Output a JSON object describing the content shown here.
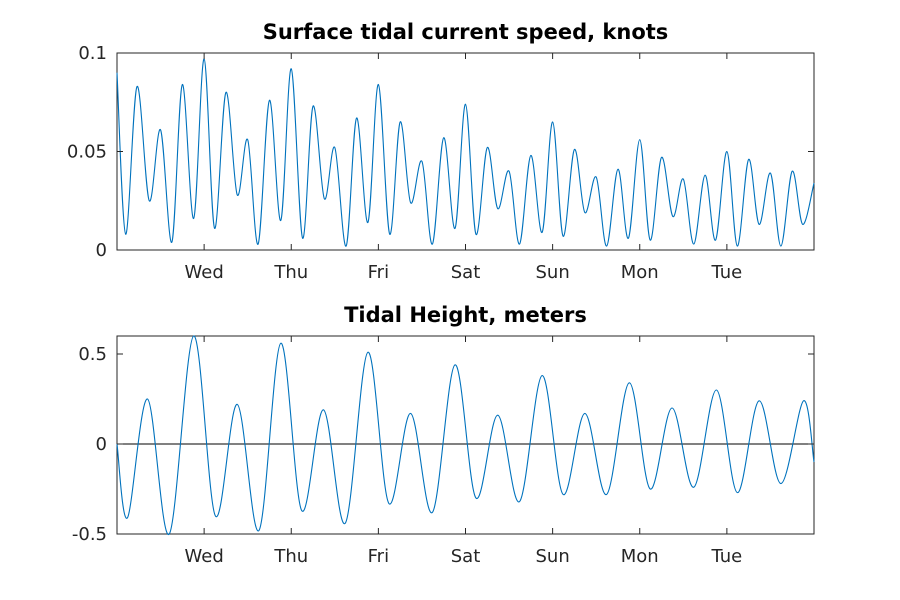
{
  "chart_data": [
    {
      "type": "line",
      "title": "Surface tidal current speed, knots",
      "xlabel": "",
      "ylabel": "",
      "ylim": [
        0,
        0.1
      ],
      "yticks": [
        0,
        0.05,
        0.1
      ],
      "ytick_labels": [
        "0",
        "0.05",
        "0.1"
      ],
      "xlim": [
        0,
        8
      ],
      "xticks": [
        1,
        2,
        3,
        4,
        5,
        6,
        7
      ],
      "xtick_labels": [
        "Wed",
        "Thu",
        "Fri",
        "Sat",
        "Sun",
        "Mon",
        "Tue"
      ],
      "grid": false,
      "color": "#0072BD",
      "series": [
        {
          "x": [
            0,
            0.1,
            0.23,
            0.37,
            0.5,
            0.63,
            0.75,
            0.88,
            1.0,
            1.12,
            1.25,
            1.38,
            1.5,
            1.62,
            1.75,
            1.88,
            2.0,
            2.13,
            2.25,
            2.38,
            2.5,
            2.63,
            2.75,
            2.88,
            3.0,
            3.13,
            3.25,
            3.37,
            3.5,
            3.62,
            3.75,
            3.88,
            4.0,
            4.12,
            4.25,
            4.37,
            4.5,
            4.62,
            4.75,
            4.88,
            5.0,
            5.12,
            5.25,
            5.37,
            5.5,
            5.62,
            5.75,
            5.87,
            6.0,
            6.12,
            6.25,
            6.38,
            6.5,
            6.62,
            6.75,
            6.87,
            7.0,
            7.12,
            7.25,
            7.37,
            7.5,
            7.62,
            7.75,
            7.87,
            8.0
          ],
          "y": [
            0.09,
            0.008,
            0.083,
            0.025,
            0.061,
            0.004,
            0.084,
            0.016,
            0.097,
            0.011,
            0.08,
            0.028,
            0.056,
            0.003,
            0.076,
            0.015,
            0.092,
            0.006,
            0.073,
            0.026,
            0.052,
            0.002,
            0.067,
            0.014,
            0.084,
            0.008,
            0.065,
            0.024,
            0.045,
            0.003,
            0.057,
            0.011,
            0.074,
            0.008,
            0.052,
            0.021,
            0.04,
            0.003,
            0.048,
            0.009,
            0.065,
            0.007,
            0.051,
            0.019,
            0.037,
            0.002,
            0.041,
            0.006,
            0.056,
            0.005,
            0.047,
            0.017,
            0.036,
            0.003,
            0.038,
            0.005,
            0.05,
            0.002,
            0.046,
            0.013,
            0.039,
            0.002,
            0.04,
            0.013,
            0.034
          ]
        }
      ]
    },
    {
      "type": "line",
      "title": "Tidal Height, meters",
      "xlabel": "",
      "ylabel": "",
      "ylim": [
        -0.5,
        0.6
      ],
      "yticks": [
        -0.5,
        0,
        0.5
      ],
      "ytick_labels": [
        "-0.5",
        "0",
        "0.5"
      ],
      "xlim": [
        0,
        8
      ],
      "xticks": [
        1,
        2,
        3,
        4,
        5,
        6,
        7
      ],
      "xtick_labels": [
        "Wed",
        "Thu",
        "Fri",
        "Sat",
        "Sun",
        "Mon",
        "Tue"
      ],
      "grid": false,
      "zero_line": true,
      "color": "#0072BD",
      "series": [
        {
          "x": [
            0,
            0.12,
            0.35,
            0.6,
            0.88,
            1.13,
            1.38,
            1.63,
            1.88,
            2.12,
            2.37,
            2.62,
            2.88,
            3.12,
            3.37,
            3.62,
            3.88,
            4.12,
            4.37,
            4.62,
            4.88,
            5.12,
            5.37,
            5.62,
            5.88,
            6.12,
            6.37,
            6.62,
            6.88,
            7.12,
            7.37,
            7.62,
            7.88,
            8.0
          ],
          "y": [
            0.0,
            -0.41,
            0.25,
            -0.5,
            0.6,
            -0.4,
            0.22,
            -0.48,
            0.56,
            -0.37,
            0.19,
            -0.44,
            0.51,
            -0.33,
            0.17,
            -0.38,
            0.44,
            -0.3,
            0.16,
            -0.32,
            0.38,
            -0.28,
            0.17,
            -0.28,
            0.34,
            -0.25,
            0.2,
            -0.24,
            0.3,
            -0.27,
            0.24,
            -0.22,
            0.24,
            -0.1
          ]
        }
      ]
    }
  ]
}
